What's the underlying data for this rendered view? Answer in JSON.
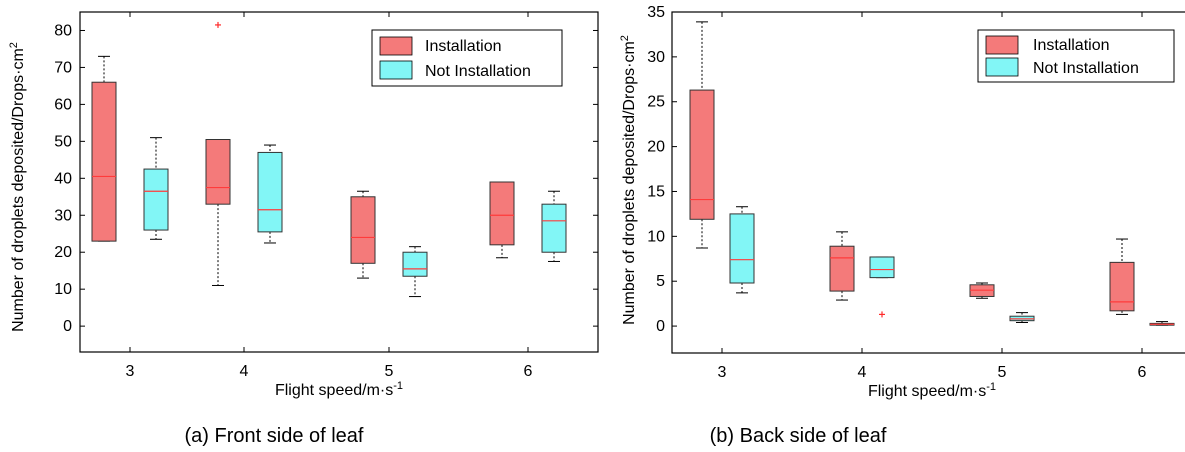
{
  "legend": [
    "Installation",
    "Not Installation"
  ],
  "colors": {
    "installation": "#f47a7a",
    "not_installation": "#82f6f6",
    "median": "#ff3b3b",
    "outlier": "#ff2a2a",
    "frame": "#000000"
  },
  "chart_data": [
    {
      "type": "box",
      "caption": "(a) Front side of leaf",
      "xlabel": "Flight speed/m·s",
      "xlabel_sup": "-1",
      "ylabel": "Number of droplets deposited/Drops·cm",
      "ylabel_sup": "2",
      "categories": [
        "3",
        "4",
        "5",
        "6"
      ],
      "ylim": [
        -7,
        85
      ],
      "yticks": [
        "0",
        "10",
        "20",
        "30",
        "40",
        "50",
        "60",
        "70",
        "80"
      ],
      "legend_position": "top-right",
      "series": [
        {
          "name": "Installation",
          "boxes": [
            {
              "min": 23,
              "q1": 23,
              "median": 40.5,
              "q3": 66,
              "max": 73,
              "outliers": []
            },
            {
              "min": 11,
              "q1": 33,
              "median": 37.5,
              "q3": 50.5,
              "max": 50.5,
              "outliers": [
                81.5
              ]
            },
            {
              "min": 13,
              "q1": 17,
              "median": 24,
              "q3": 35,
              "max": 36.5,
              "outliers": []
            },
            {
              "min": 18.5,
              "q1": 22,
              "median": 30,
              "q3": 39,
              "max": 39,
              "outliers": []
            }
          ]
        },
        {
          "name": "Not Installation",
          "boxes": [
            {
              "min": 23.5,
              "q1": 26,
              "median": 36.5,
              "q3": 42.5,
              "max": 51,
              "outliers": []
            },
            {
              "min": 22.5,
              "q1": 25.5,
              "median": 31.5,
              "q3": 47,
              "max": 49,
              "outliers": []
            },
            {
              "min": 8,
              "q1": 13.5,
              "median": 15.5,
              "q3": 20,
              "max": 21.5,
              "outliers": []
            },
            {
              "min": 17.5,
              "q1": 20,
              "median": 28.5,
              "q3": 33,
              "max": 36.5,
              "outliers": []
            }
          ]
        }
      ]
    },
    {
      "type": "box",
      "caption": "(b) Back side of leaf",
      "xlabel": "Flight speed/m·s",
      "xlabel_sup": "-1",
      "ylabel": "Number of droplets deposited/Drops·cm",
      "ylabel_sup": "2",
      "categories": [
        "3",
        "4",
        "5",
        "6"
      ],
      "ylim": [
        -3,
        35
      ],
      "yticks": [
        "0",
        "5",
        "10",
        "15",
        "20",
        "25",
        "30",
        "35"
      ],
      "legend_position": "top-right",
      "series": [
        {
          "name": "Installation",
          "boxes": [
            {
              "min": 8.7,
              "q1": 11.9,
              "median": 14.1,
              "q3": 26.3,
              "max": 33.9,
              "outliers": []
            },
            {
              "min": 2.9,
              "q1": 3.9,
              "median": 7.6,
              "q3": 8.9,
              "max": 10.5,
              "outliers": []
            },
            {
              "min": 3.1,
              "q1": 3.3,
              "median": 4.0,
              "q3": 4.6,
              "max": 4.8,
              "outliers": []
            },
            {
              "min": 1.3,
              "q1": 1.7,
              "median": 2.7,
              "q3": 7.1,
              "max": 9.7,
              "outliers": []
            }
          ]
        },
        {
          "name": "Not Installation",
          "boxes": [
            {
              "min": 3.7,
              "q1": 4.8,
              "median": 7.4,
              "q3": 12.5,
              "max": 13.3,
              "outliers": []
            },
            {
              "min": 5.4,
              "q1": 5.4,
              "median": 6.3,
              "q3": 7.7,
              "max": 7.7,
              "outliers": [
                1.3
              ]
            },
            {
              "min": 0.4,
              "q1": 0.6,
              "median": 0.8,
              "q3": 1.1,
              "max": 1.5,
              "outliers": []
            },
            {
              "min": 0.1,
              "q1": 0.1,
              "median": 0.2,
              "q3": 0.3,
              "max": 0.5,
              "outliers": []
            }
          ]
        }
      ]
    }
  ]
}
